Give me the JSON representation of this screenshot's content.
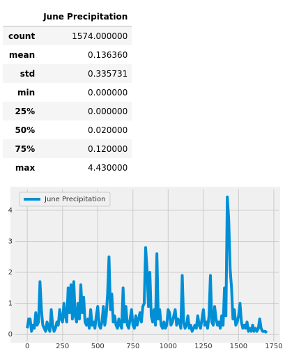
{
  "table": {
    "columns": [
      "June Precipitation"
    ],
    "rows": [
      [
        "count",
        "1574.000000"
      ],
      [
        "mean",
        "0.136360"
      ],
      [
        "std",
        "0.335731"
      ],
      [
        "min",
        "0.000000"
      ],
      [
        "25%",
        "0.000000"
      ],
      [
        "50%",
        "0.020000"
      ],
      [
        "75%",
        "0.120000"
      ],
      [
        "max",
        "4.430000"
      ]
    ]
  },
  "chart_data": {
    "type": "line",
    "x": [
      0,
      10,
      20,
      30,
      40,
      50,
      60,
      70,
      80,
      90,
      100,
      110,
      120,
      130,
      140,
      150,
      160,
      170,
      180,
      190,
      200,
      210,
      220,
      230,
      240,
      250,
      260,
      270,
      280,
      290,
      300,
      310,
      320,
      330,
      340,
      350,
      360,
      370,
      380,
      390,
      400,
      410,
      420,
      430,
      440,
      450,
      460,
      470,
      480,
      490,
      500,
      510,
      520,
      530,
      540,
      550,
      560,
      570,
      580,
      590,
      600,
      610,
      620,
      630,
      640,
      650,
      660,
      670,
      680,
      690,
      700,
      710,
      720,
      730,
      740,
      750,
      760,
      770,
      780,
      790,
      800,
      810,
      820,
      830,
      840,
      850,
      860,
      870,
      880,
      890,
      900,
      910,
      920,
      930,
      940,
      950,
      960,
      970,
      980,
      990,
      1000,
      1010,
      1020,
      1030,
      1040,
      1050,
      1060,
      1070,
      1080,
      1090,
      1100,
      1110,
      1120,
      1130,
      1140,
      1150,
      1160,
      1170,
      1180,
      1190,
      1200,
      1210,
      1220,
      1230,
      1240,
      1250,
      1260,
      1270,
      1280,
      1290,
      1300,
      1310,
      1320,
      1330,
      1340,
      1350,
      1360,
      1370,
      1380,
      1390,
      1400,
      1410,
      1420,
      1430,
      1440,
      1450,
      1460,
      1470,
      1480,
      1490,
      1500,
      1510,
      1520,
      1530,
      1540,
      1550,
      1560,
      1570,
      1580,
      1590,
      1600,
      1610,
      1620,
      1630,
      1640,
      1650,
      1660,
      1670,
      1680,
      1690,
      1700
    ],
    "series": [
      {
        "name": "June Precipitation",
        "color": "#008fd5",
        "values": [
          0.2,
          0.5,
          0.5,
          0.1,
          0.3,
          0.2,
          0.7,
          0.3,
          0.4,
          1.7,
          0.8,
          0.3,
          0.2,
          0.1,
          0.4,
          0.2,
          0.1,
          0.8,
          0.3,
          0.1,
          0.2,
          0.4,
          0.3,
          0.8,
          0.5,
          0.4,
          1.0,
          0.6,
          0.4,
          1.5,
          0.7,
          1.6,
          0.5,
          1.7,
          0.6,
          0.4,
          1.0,
          0.5,
          1.6,
          0.7,
          1.2,
          0.4,
          0.3,
          0.5,
          0.2,
          0.8,
          0.3,
          0.4,
          0.2,
          0.6,
          0.9,
          0.3,
          0.2,
          0.4,
          0.9,
          0.3,
          0.6,
          1.3,
          2.5,
          0.8,
          1.3,
          0.4,
          0.6,
          0.3,
          0.2,
          0.5,
          0.3,
          0.2,
          1.5,
          0.4,
          0.9,
          0.3,
          0.2,
          0.5,
          0.8,
          0.3,
          0.2,
          0.6,
          0.3,
          0.5,
          0.7,
          0.4,
          0.9,
          1.0,
          2.8,
          2.1,
          0.9,
          2.0,
          0.6,
          0.4,
          0.8,
          0.3,
          2.6,
          0.5,
          0.8,
          0.3,
          0.2,
          0.4,
          0.2,
          0.3,
          0.8,
          0.7,
          0.3,
          0.4,
          0.6,
          0.8,
          0.3,
          0.5,
          0.4,
          0.2,
          1.9,
          0.4,
          0.2,
          0.3,
          0.6,
          0.2,
          0.3,
          0.1,
          0.2,
          0.3,
          0.2,
          0.6,
          0.3,
          0.2,
          0.5,
          0.8,
          0.3,
          0.4,
          0.2,
          0.6,
          1.9,
          0.4,
          0.3,
          0.9,
          0.5,
          0.3,
          0.4,
          0.2,
          0.6,
          0.3,
          1.5,
          0.6,
          4.43,
          3.7,
          2.1,
          1.5,
          0.5,
          0.8,
          0.3,
          0.4,
          0.6,
          1.0,
          0.4,
          0.2,
          0.3,
          0.2,
          0.4,
          0.1,
          0.2,
          0.1,
          0.3,
          0.1,
          0.2,
          0.1,
          0.2,
          0.5,
          0.2,
          0.1,
          0.1,
          0.1,
          0.05
        ]
      }
    ],
    "xlim": [
      -85,
      1785
    ],
    "ylim": [
      -0.22,
      4.67
    ],
    "xticks": [
      0,
      250,
      500,
      750,
      1000,
      1250,
      1500,
      1750
    ],
    "yticks": [
      0,
      1,
      2,
      3,
      4
    ],
    "grid": true,
    "legend": "upper left"
  }
}
